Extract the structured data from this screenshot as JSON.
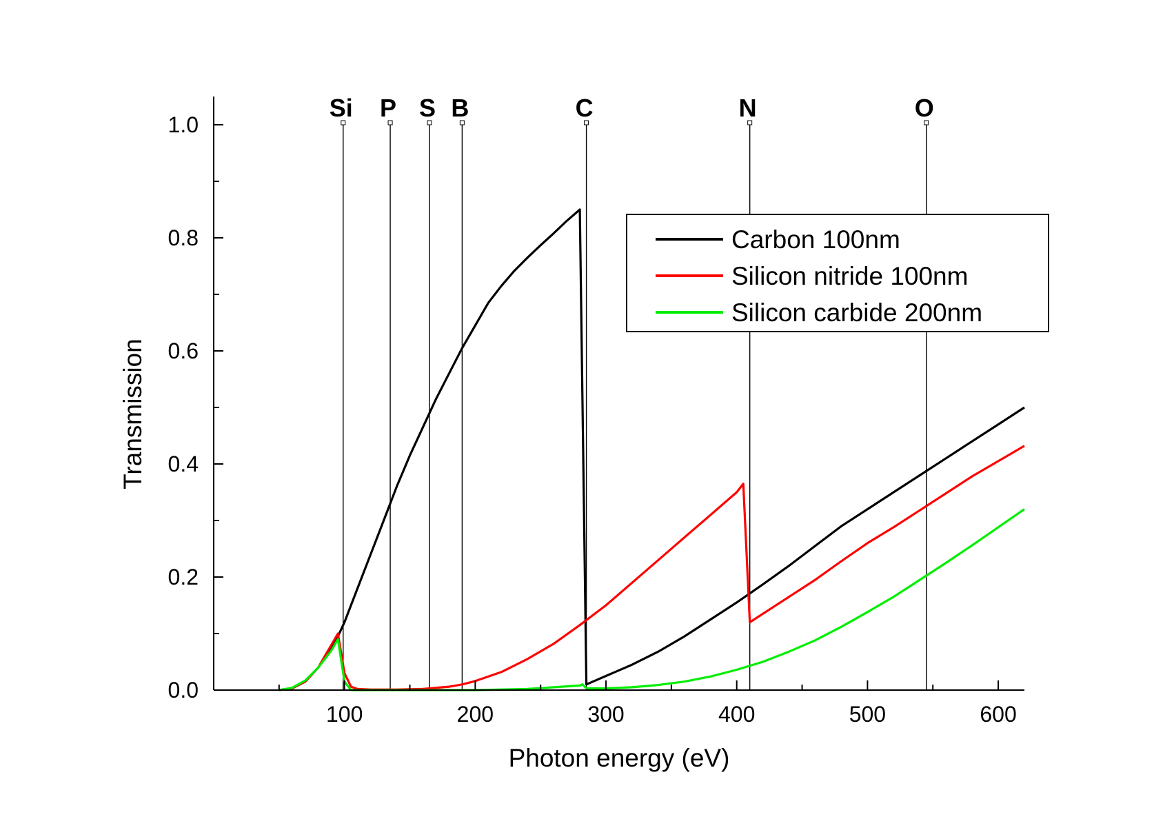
{
  "chart_data": {
    "type": "line",
    "title": "",
    "xlabel": "Photon energy (eV)",
    "ylabel": "Transmission",
    "xlim": [
      0,
      620
    ],
    "ylim": [
      0,
      1.05
    ],
    "x_ticks": [
      100,
      200,
      300,
      400,
      500,
      600
    ],
    "x_tick_labels": [
      "100",
      "200",
      "300",
      "400",
      "500",
      "600"
    ],
    "y_ticks": [
      0.0,
      0.2,
      0.4,
      0.6,
      0.8,
      1.0
    ],
    "y_tick_labels": [
      "0.0",
      "0.2",
      "0.4",
      "0.6",
      "0.8",
      "1.0"
    ],
    "grid": false,
    "legend_position": "top-right",
    "absorption_edges": [
      {
        "label": "Si",
        "x": 99
      },
      {
        "label": "P",
        "x": 135
      },
      {
        "label": "S",
        "x": 165
      },
      {
        "label": "B",
        "x": 190
      },
      {
        "label": "C",
        "x": 285
      },
      {
        "label": "N",
        "x": 410
      },
      {
        "label": "O",
        "x": 545
      }
    ],
    "series": [
      {
        "name": "Carbon 100nm",
        "color": "#000000",
        "x": [
          50,
          60,
          70,
          80,
          90,
          95,
          100,
          110,
          120,
          130,
          140,
          150,
          160,
          170,
          180,
          190,
          200,
          210,
          220,
          230,
          240,
          250,
          260,
          270,
          280,
          285,
          290,
          300,
          320,
          340,
          360,
          380,
          400,
          420,
          440,
          460,
          480,
          500,
          520,
          540,
          560,
          580,
          600,
          620
        ],
        "y": [
          0.0,
          0.003,
          0.015,
          0.04,
          0.075,
          0.095,
          0.12,
          0.18,
          0.24,
          0.3,
          0.36,
          0.415,
          0.465,
          0.515,
          0.56,
          0.605,
          0.645,
          0.685,
          0.715,
          0.742,
          0.765,
          0.787,
          0.808,
          0.83,
          0.85,
          0.01,
          0.015,
          0.025,
          0.045,
          0.068,
          0.095,
          0.125,
          0.155,
          0.187,
          0.22,
          0.255,
          0.29,
          0.32,
          0.35,
          0.38,
          0.41,
          0.44,
          0.47,
          0.5
        ]
      },
      {
        "name": "Silicon nitride 100nm",
        "color": "#ff0000",
        "x": [
          50,
          60,
          70,
          80,
          90,
          95,
          100,
          105,
          110,
          120,
          140,
          160,
          170,
          180,
          190,
          200,
          220,
          240,
          260,
          280,
          300,
          320,
          340,
          360,
          380,
          400,
          405,
          410,
          420,
          440,
          460,
          480,
          500,
          520,
          540,
          560,
          580,
          600,
          620
        ],
        "y": [
          0.0,
          0.003,
          0.015,
          0.04,
          0.08,
          0.1,
          0.03,
          0.006,
          0.002,
          0.001,
          0.001,
          0.002,
          0.004,
          0.006,
          0.01,
          0.016,
          0.032,
          0.055,
          0.082,
          0.115,
          0.15,
          0.19,
          0.23,
          0.27,
          0.31,
          0.35,
          0.365,
          0.12,
          0.135,
          0.165,
          0.195,
          0.228,
          0.26,
          0.288,
          0.318,
          0.348,
          0.378,
          0.405,
          0.432
        ]
      },
      {
        "name": "Silicon carbide 200nm",
        "color": "#00ee00",
        "x": [
          50,
          60,
          70,
          80,
          90,
          95,
          100,
          105,
          120,
          160,
          200,
          240,
          260,
          280,
          282,
          285,
          300,
          320,
          340,
          360,
          380,
          400,
          420,
          440,
          460,
          480,
          500,
          520,
          540,
          560,
          580,
          600,
          620
        ],
        "y": [
          0.0,
          0.004,
          0.017,
          0.04,
          0.07,
          0.09,
          0.015,
          0.0,
          0.0,
          0.0,
          0.0,
          0.002,
          0.005,
          0.008,
          0.01,
          0.003,
          0.003,
          0.005,
          0.009,
          0.015,
          0.024,
          0.036,
          0.05,
          0.068,
          0.088,
          0.112,
          0.138,
          0.165,
          0.195,
          0.225,
          0.256,
          0.288,
          0.32
        ]
      }
    ]
  }
}
